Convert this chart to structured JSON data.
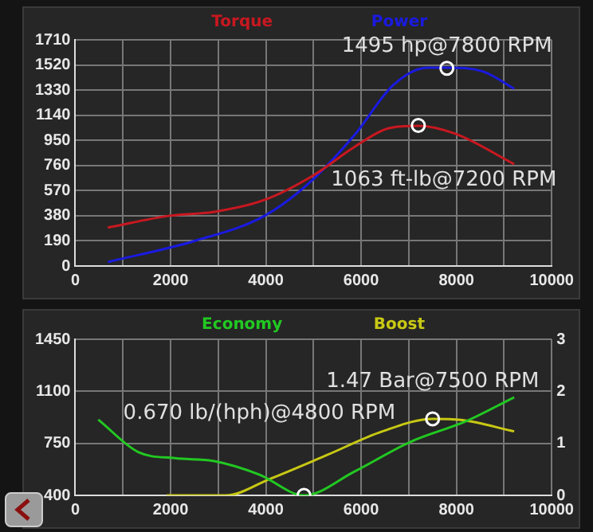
{
  "chart_data": [
    {
      "type": "line",
      "xlim": [
        0,
        10000
      ],
      "xticks": [
        0,
        {
          "value": 1000,
          "label": null
        },
        2000,
        {
          "value": 3000,
          "label": null
        },
        4000,
        {
          "value": 5000,
          "label": null
        },
        6000,
        {
          "value": 7000,
          "label": null
        },
        8000,
        {
          "value": 9000,
          "label": null
        },
        10000
      ],
      "ylim": [
        0,
        1710
      ],
      "yticks": [
        0,
        190,
        380,
        570,
        760,
        950,
        1140,
        1330,
        1520,
        1710
      ],
      "grid": true,
      "legend": "top",
      "series": [
        {
          "name": "Torque",
          "color": "#c81820",
          "x": [
            682,
            1976,
            2918,
            3976,
            4976,
            5860,
            6565,
            7200,
            7976,
            9212
          ],
          "values": [
            290,
            380,
            410,
            500,
            680,
            900,
            1040,
            1060,
            1000,
            770
          ]
        },
        {
          "name": "Power",
          "color": "#1a1ae0",
          "x": [
            682,
            2506,
            3976,
            4976,
            5860,
            6680,
            7390,
            7800,
            8565,
            9212
          ],
          "values": [
            30,
            190,
            380,
            650,
            990,
            1370,
            1500,
            1500,
            1470,
            1340
          ]
        },
        {
          "type": "scatter",
          "marker": "circle",
          "color": "#ffffff",
          "x": [
            7800
          ],
          "values": [
            1495
          ]
        },
        {
          "type": "scatter",
          "marker": "circle",
          "color": "#ffffff",
          "x": [
            7200
          ],
          "values": [
            1063
          ]
        }
      ],
      "annotations": [
        "1495 hp@7800 RPM",
        "1063 ft-lb@7200 RPM"
      ]
    },
    {
      "type": "line",
      "xlim": [
        0,
        10000
      ],
      "xticks": [
        0,
        {
          "value": 1000,
          "label": null
        },
        2000,
        {
          "value": 3000,
          "label": null
        },
        4000,
        {
          "value": 5000,
          "label": null
        },
        6000,
        {
          "value": 7000,
          "label": null
        },
        8000,
        {
          "value": 9000,
          "label": null
        },
        10000
      ],
      "ylim": [
        400,
        1450
      ],
      "yticks": [
        400,
        750,
        1100,
        1450
      ],
      "y2lim": [
        0,
        3
      ],
      "y2ticks": [
        0,
        1,
        2,
        3
      ],
      "grid": true,
      "legend": "top",
      "series": [
        {
          "name": "Economy",
          "color": "#22c822",
          "x": [
            482,
            1329,
            2094,
            2918,
            3859,
            4800,
            5859,
            7035,
            8212,
            9212
          ],
          "values": [
            910,
            690,
            650,
            630,
            540,
            400,
            560,
            760,
            900,
            1060
          ]
        },
        {
          "name": "Boost",
          "color": "#c8c814",
          "axis": "y2",
          "x": [
            1918,
            3153,
            4094,
            5270,
            6447,
            7500,
            8094,
            9212
          ],
          "values": [
            0,
            0,
            0.32,
            0.77,
            1.23,
            1.47,
            1.45,
            1.23
          ]
        },
        {
          "type": "scatter",
          "marker": "circle",
          "color": "#ffffff",
          "axis": "y2",
          "x": [
            7500
          ],
          "values": [
            1.47
          ]
        },
        {
          "type": "scatter",
          "marker": "circle",
          "color": "#ffffff",
          "x": [
            4800
          ],
          "values": [
            400
          ]
        }
      ],
      "annotations": [
        "1.47 Bar@7500 RPM",
        "0.670 lb/(hph)@4800 RPM"
      ]
    }
  ]
}
